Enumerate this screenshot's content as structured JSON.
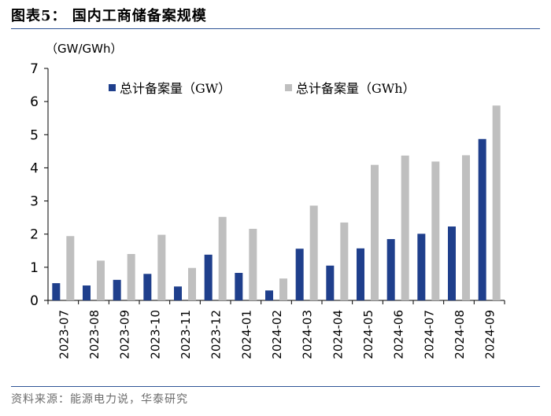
{
  "title": "图表5：  国内工商储备案规模",
  "source": "资料来源：能源电力说，华泰研究",
  "chart_data": {
    "type": "bar",
    "unit_label": "（GW/GWh）",
    "categories": [
      "2023-07",
      "2023-08",
      "2023-09",
      "2023-10",
      "2023-11",
      "2023-12",
      "2024-01",
      "2024-02",
      "2024-03",
      "2024-04",
      "2024-05",
      "2024-06",
      "2024-07",
      "2024-08",
      "2024-09"
    ],
    "series": [
      {
        "name": "总计备案量（GW）",
        "color": "#1f3f8c",
        "values": [
          0.52,
          0.45,
          0.62,
          0.8,
          0.42,
          1.38,
          0.83,
          0.3,
          1.56,
          1.05,
          1.57,
          1.85,
          2.01,
          2.23,
          4.87
        ]
      },
      {
        "name": "总计备案量（GWh）",
        "color": "#bfbfbf",
        "values": [
          1.94,
          1.2,
          1.4,
          1.98,
          0.98,
          2.52,
          2.16,
          0.66,
          2.86,
          2.35,
          4.09,
          4.37,
          4.19,
          4.38,
          5.88
        ]
      }
    ],
    "ylim": [
      0,
      7
    ],
    "yticks": [
      0,
      1,
      2,
      3,
      4,
      5,
      6,
      7
    ],
    "legend_position": "top",
    "grid": false
  }
}
